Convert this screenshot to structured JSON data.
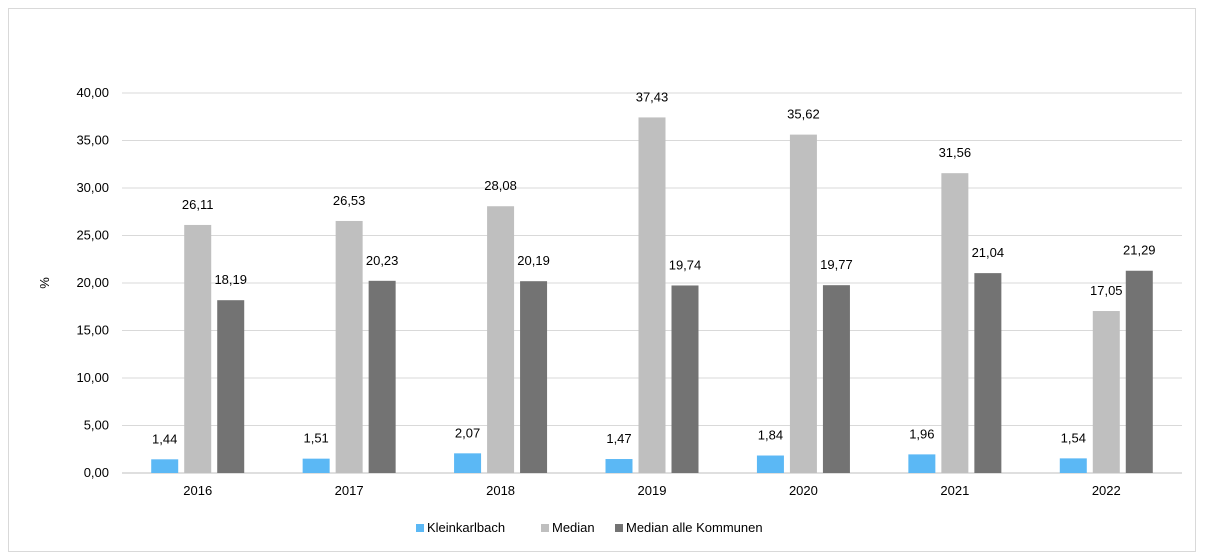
{
  "chart_data": {
    "type": "bar",
    "ylabel": "%",
    "ylim": [
      0,
      40
    ],
    "yticks": [
      "0,00",
      "5,00",
      "10,00",
      "15,00",
      "20,00",
      "25,00",
      "30,00",
      "35,00",
      "40,00"
    ],
    "grid": true,
    "legend_position": "bottom",
    "categories": [
      "2016",
      "2017",
      "2018",
      "2019",
      "2020",
      "2021",
      "2022"
    ],
    "series": [
      {
        "name": "Kleinkarlbach",
        "color": "#5bb8f5",
        "values": [
          1.44,
          1.51,
          2.07,
          1.47,
          1.84,
          1.96,
          1.54
        ],
        "labels": [
          "1,44",
          "1,51",
          "2,07",
          "1,47",
          "1,84",
          "1,96",
          "1,54"
        ]
      },
      {
        "name": "Median",
        "color": "#bfbfbf",
        "values": [
          26.11,
          26.53,
          28.08,
          37.43,
          35.62,
          31.56,
          17.05
        ],
        "labels": [
          "26,11",
          "26,53",
          "28,08",
          "37,43",
          "35,62",
          "31,56",
          "17,05"
        ]
      },
      {
        "name": "Median alle Kommunen",
        "color": "#737373",
        "values": [
          18.19,
          20.23,
          20.19,
          19.74,
          19.77,
          21.04,
          21.29
        ],
        "labels": [
          "18,19",
          "20,23",
          "20,19",
          "19,74",
          "19,77",
          "21,04",
          "21,29"
        ]
      }
    ]
  }
}
